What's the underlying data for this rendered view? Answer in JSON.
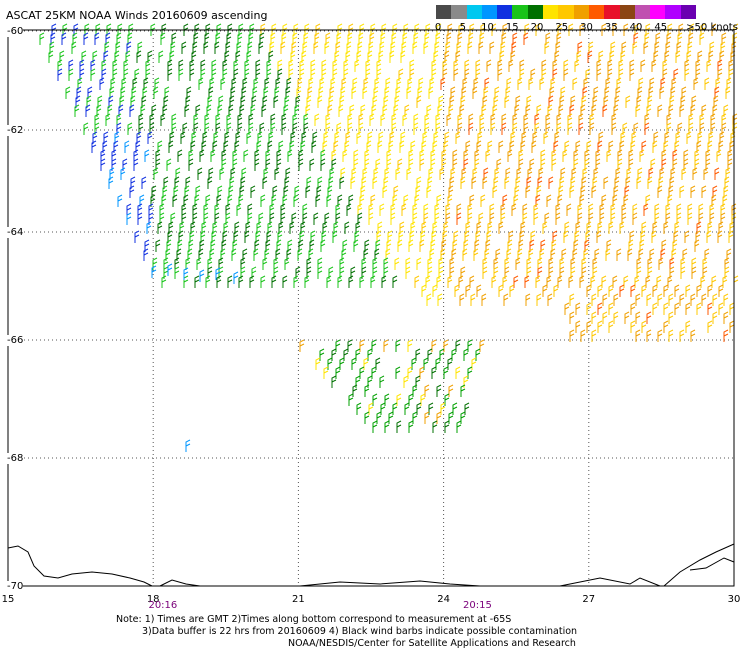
{
  "title": "ASCAT 25KM NOAA Winds 20160609  ascending",
  "legend": {
    "colors": [
      "#4a4a4a",
      "#8a8a8a",
      "#00c8f0",
      "#0096ff",
      "#1030e0",
      "#19c419",
      "#007000",
      "#ffe400",
      "#ffc800",
      "#f0a000",
      "#ff5a00",
      "#e8102a",
      "#8b4513",
      "#c050b0",
      "#ff00ff",
      "#b000ff",
      "#6a00b0"
    ],
    "labels": [
      {
        "text": "0",
        "value": 0
      },
      {
        "text": "5",
        "value": 5
      },
      {
        "text": "10",
        "value": 10
      },
      {
        "text": "15",
        "value": 15
      },
      {
        "text": "20",
        "value": 20
      },
      {
        "text": "25",
        "value": 25
      },
      {
        "text": "30",
        "value": 30
      },
      {
        "text": "35",
        "value": 35
      },
      {
        "text": "40",
        "value": 40
      },
      {
        "text": "45",
        "value": 45
      },
      {
        "text": ">50 knots",
        "value": 52
      }
    ]
  },
  "lat_labels": [
    {
      "text": "-60",
      "lat": -60
    },
    {
      "text": "-62",
      "lat": -62
    },
    {
      "text": "-64",
      "lat": -64
    },
    {
      "text": "-66",
      "lat": -66
    },
    {
      "text": "-68",
      "lat": -68
    },
    {
      "text": "-70",
      "lat": -70
    }
  ],
  "lon_labels": [
    {
      "text": "15",
      "lon": 15
    },
    {
      "text": "18",
      "lon": 18
    },
    {
      "text": "21",
      "lon": 21
    },
    {
      "text": "24",
      "lon": 24
    },
    {
      "text": "27",
      "lon": 27
    },
    {
      "text": "30",
      "lon": 30
    }
  ],
  "time_labels": [
    {
      "text": "20:16",
      "lon": 18.2
    },
    {
      "text": "20:15",
      "lon": 24.7
    }
  ],
  "notes": [
    "Note: 1) Times are GMT 2)Times along bottom correspond to measurement at -65S",
    "3)Data buffer is 22 hrs from 20160609 4) Black wind barbs indicate possible contamination",
    "NOAA/NESDIS/Center for Satellite Applications and Research"
  ]
}
